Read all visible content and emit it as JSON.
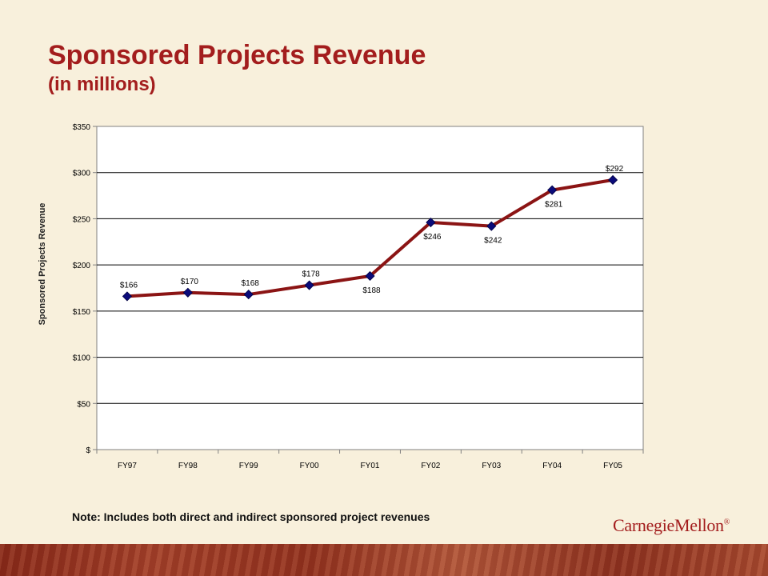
{
  "slide": {
    "title": "Sponsored Projects Revenue",
    "subtitle": "(in millions)",
    "note": "Note:  Includes both direct and indirect sponsored project revenues",
    "logo_text": "CarnegieMellon"
  },
  "colors": {
    "title": "#a31d1d",
    "line": "#8b1414",
    "marker": "#0b0b7a",
    "background": "#f8f0dc"
  },
  "chart_data": {
    "type": "line",
    "ylabel": "Sponsored Projects Revenue",
    "xlabel": "",
    "categories": [
      "FY97",
      "FY98",
      "FY99",
      "FY00",
      "FY01",
      "FY02",
      "FY03",
      "FY04",
      "FY05"
    ],
    "series": [
      {
        "values": [
          166,
          170,
          168,
          178,
          188,
          246,
          242,
          281,
          292
        ],
        "data_labels": [
          "$166",
          "$170",
          "$168",
          "$178",
          "$188",
          "$246",
          "$242",
          "$281",
          "$292"
        ],
        "label_positions": [
          "above",
          "above",
          "above",
          "above",
          "below",
          "below",
          "below",
          "below",
          "above"
        ]
      }
    ],
    "ylim": [
      0,
      350
    ],
    "yticks": [
      0,
      50,
      100,
      150,
      200,
      250,
      300,
      350
    ],
    "ytick_labels": [
      "$",
      "$50",
      "$100",
      "$150",
      "$200",
      "$250",
      "$300",
      "$350"
    ],
    "grid": true,
    "legend": "none"
  }
}
